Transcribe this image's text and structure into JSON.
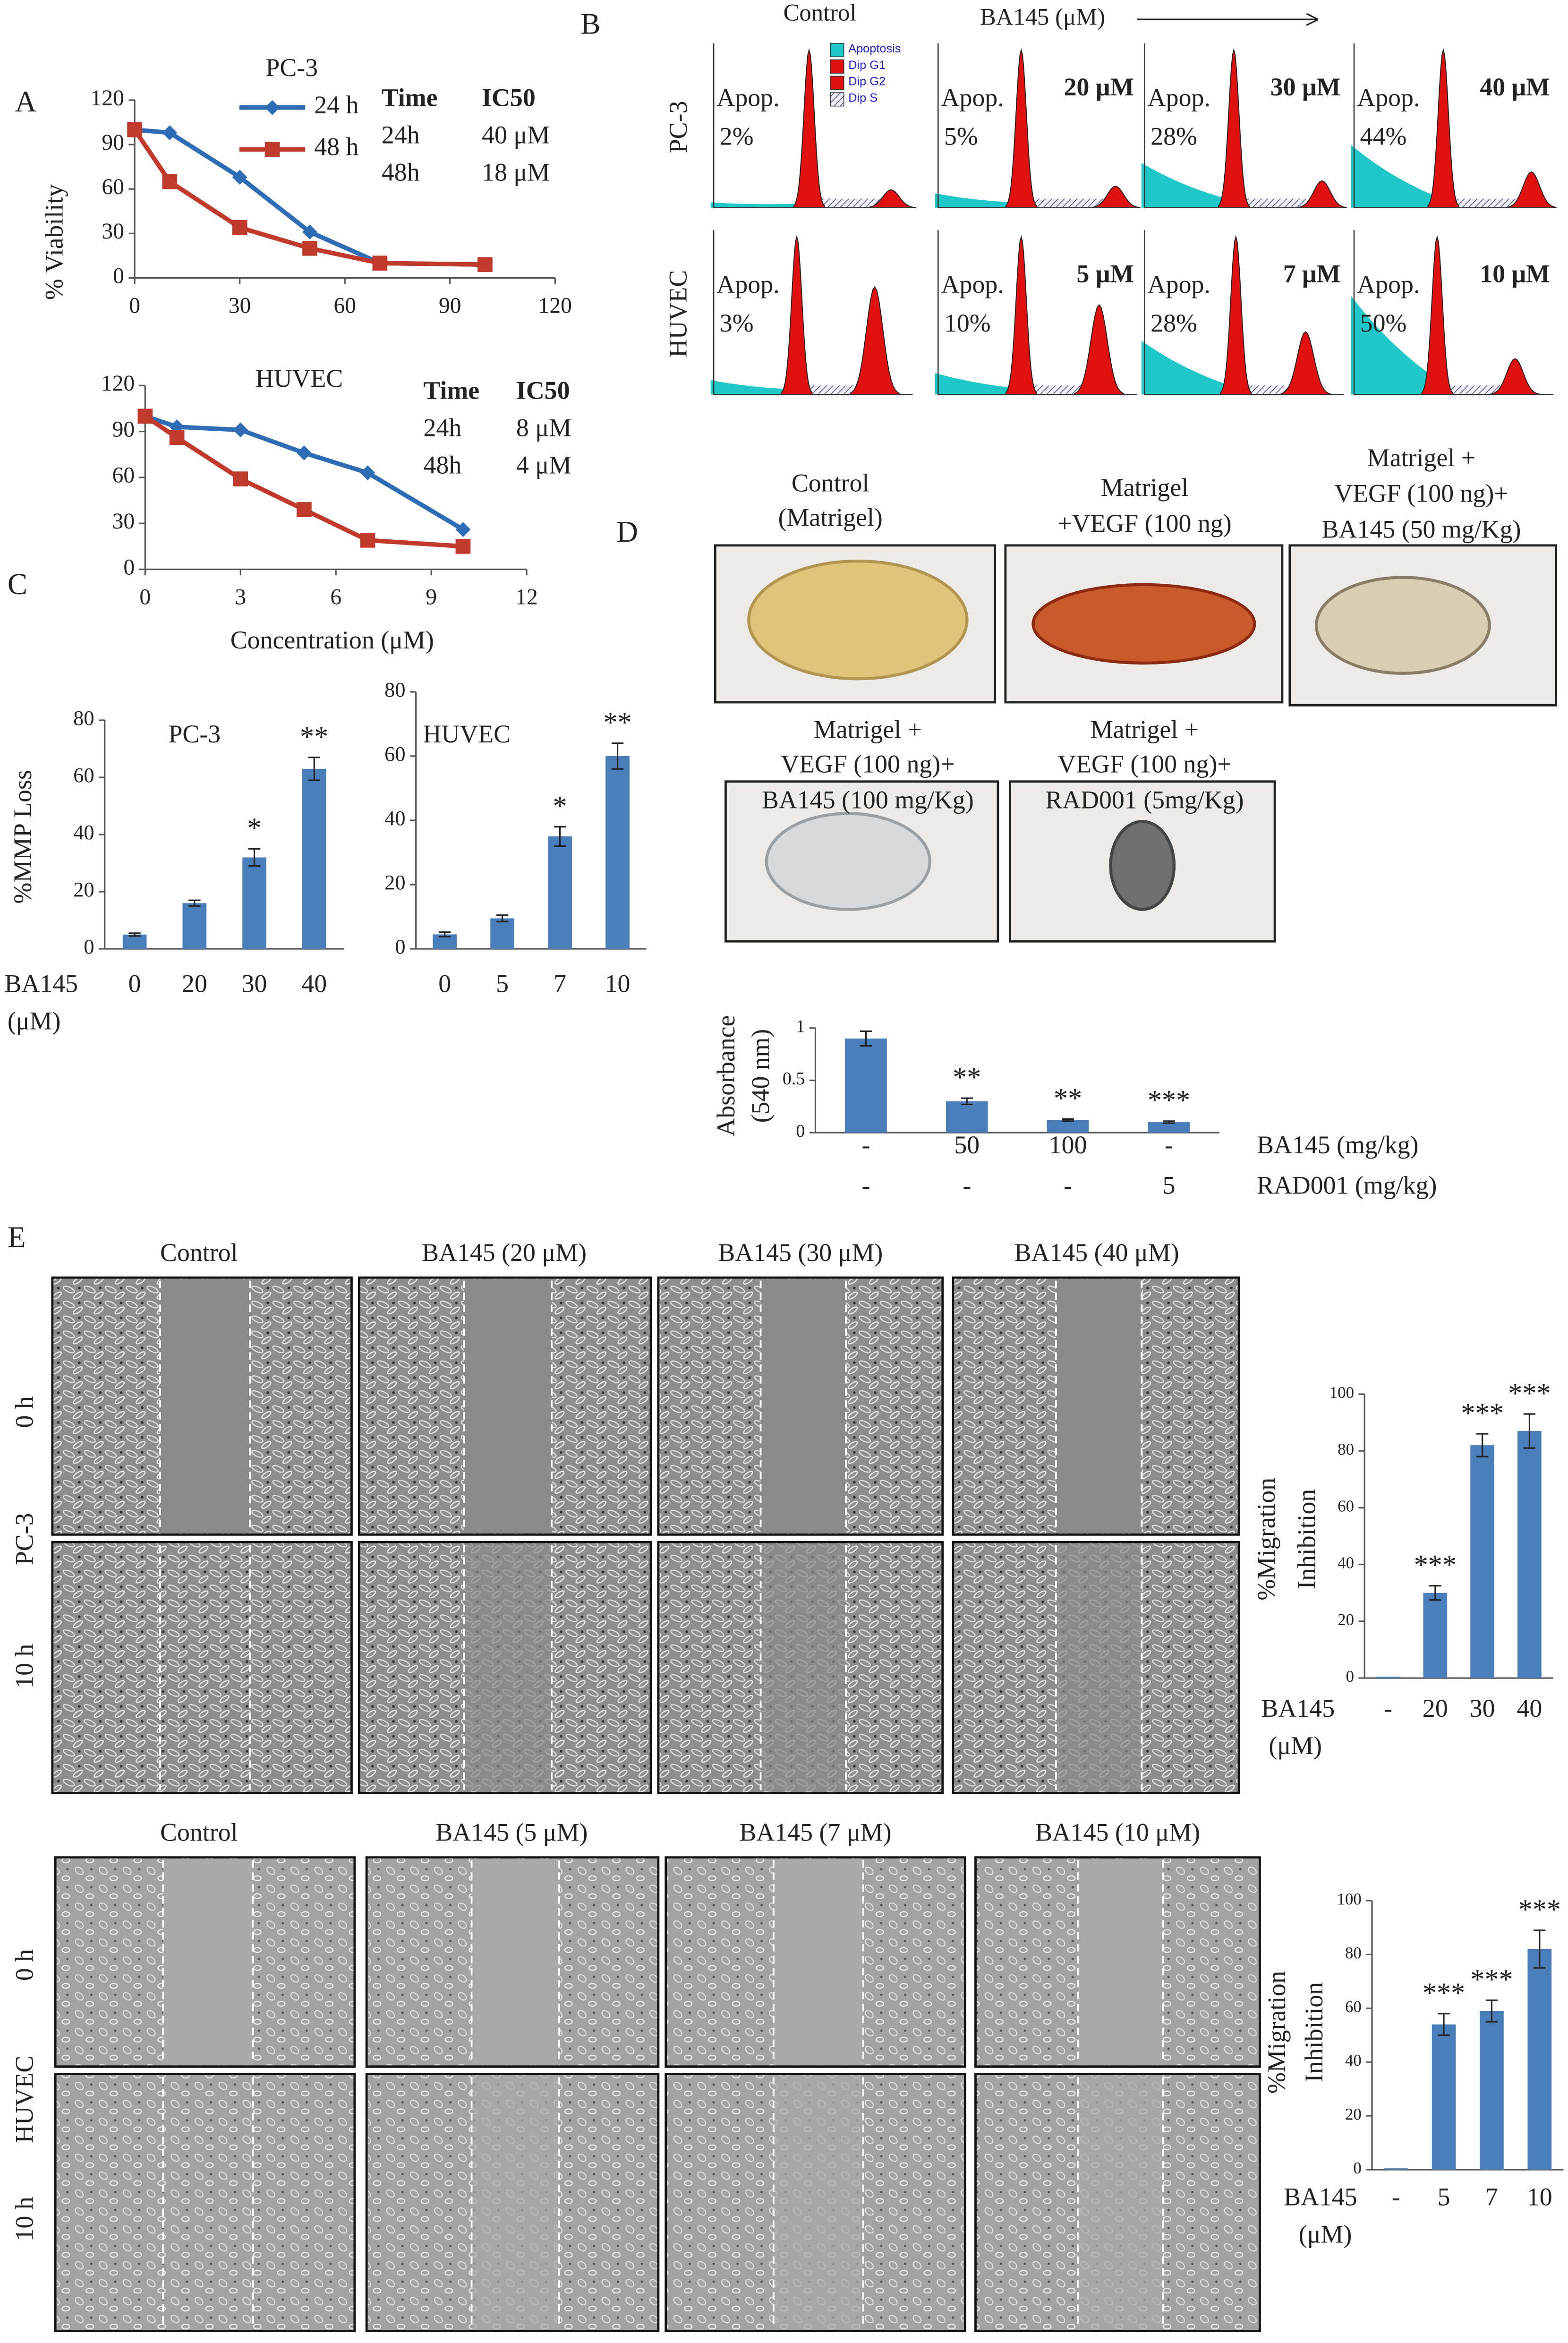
{
  "panel_labels": [
    "A",
    "B",
    "C",
    "D",
    "E"
  ],
  "chart_data": [
    {
      "type": "line",
      "title": "PC-3",
      "ylabel": "% Viability",
      "x": [
        0,
        10,
        30,
        50,
        70,
        100
      ],
      "xlim": [
        0,
        120
      ],
      "xticks": [
        0,
        30,
        60,
        90,
        120
      ],
      "ylim": [
        0,
        120
      ],
      "yticks": [
        0,
        30,
        60,
        90,
        120
      ],
      "legend": true,
      "series": [
        {
          "name": "24 h",
          "color": "#2e6db5",
          "marker": "diamond",
          "values": [
            100,
            98,
            68,
            31,
            10,
            9
          ]
        },
        {
          "name": "48 h",
          "color": "#c0392b",
          "marker": "square",
          "values": [
            100,
            65,
            34,
            20,
            10,
            9
          ]
        }
      ],
      "table": {
        "header": [
          "Time",
          "IC50"
        ],
        "rows": [
          [
            "24h",
            "40 μM"
          ],
          [
            "48h",
            "18 μM"
          ]
        ]
      }
    },
    {
      "type": "line",
      "title": "HUVEC",
      "xlabel": "Concentration (μM)",
      "x": [
        0,
        1,
        3,
        5,
        7,
        10
      ],
      "xlim": [
        0,
        12
      ],
      "xticks": [
        0,
        3,
        6,
        9,
        12
      ],
      "ylim": [
        0,
        120
      ],
      "yticks": [
        0,
        30,
        60,
        90,
        120
      ],
      "legend": false,
      "series": [
        {
          "name": "24 h",
          "color": "#2e6db5",
          "marker": "diamond",
          "values": [
            100,
            93,
            91,
            76,
            63,
            26
          ]
        },
        {
          "name": "48 h",
          "color": "#c0392b",
          "marker": "square",
          "values": [
            100,
            86,
            59,
            39,
            19,
            15
          ]
        }
      ],
      "table": {
        "header": [
          "Time",
          "IC50"
        ],
        "rows": [
          [
            "24h",
            "8 μM"
          ],
          [
            "48h",
            "4 μM"
          ]
        ]
      }
    },
    {
      "type": "bar",
      "title": "PC-3",
      "ylabel": [
        "%MMP Loss"
      ],
      "xlabel": [
        "BA145",
        "(μM)"
      ],
      "color": "#4a7ebb",
      "categories": [
        "0",
        "20",
        "30",
        "40"
      ],
      "values": [
        5,
        16,
        32,
        63
      ],
      "errors": [
        0.5,
        1,
        3,
        4
      ],
      "significance": [
        null,
        null,
        "*",
        "**"
      ],
      "ylim": [
        0,
        80
      ],
      "yticks": [
        0,
        20,
        40,
        60,
        80
      ]
    },
    {
      "type": "bar",
      "title": "HUVEC",
      "color": "#4a7ebb",
      "categories": [
        "0",
        "5",
        "7",
        "10"
      ],
      "values": [
        4.5,
        9.5,
        35,
        60
      ],
      "errors": [
        0.7,
        1,
        3,
        4
      ],
      "significance": [
        null,
        null,
        "*",
        "**"
      ],
      "ylim": [
        0,
        80
      ],
      "yticks": [
        0,
        20,
        40,
        60,
        80
      ]
    },
    {
      "type": "bar",
      "ylabel": [
        "Absorbance",
        "(540 nm)"
      ],
      "color": "#4a7ebb",
      "categories": [
        "-",
        "50",
        "100",
        "-"
      ],
      "categories2": [
        "-",
        "-",
        "-",
        "5"
      ],
      "row_labels": [
        "BA145 (mg/kg)",
        "RAD001 (mg/kg)"
      ],
      "values": [
        0.9,
        0.3,
        0.12,
        0.1
      ],
      "errors": [
        0.07,
        0.03,
        0.01,
        0.01
      ],
      "significance": [
        null,
        "**",
        "**",
        "***"
      ],
      "ylim": [
        0,
        1
      ],
      "yticks": [
        0,
        0.5,
        1
      ]
    },
    {
      "type": "bar",
      "ylabel": [
        "%Migration",
        "Inhibition"
      ],
      "xlabel": [
        "BA145",
        "(μM)"
      ],
      "color": "#4a7ebb",
      "categories": [
        "-",
        "20",
        "30",
        "40"
      ],
      "values": [
        0.5,
        30,
        82,
        87
      ],
      "errors": [
        0,
        2.5,
        4,
        6
      ],
      "significance": [
        null,
        "***",
        "***",
        "***"
      ],
      "ylim": [
        0,
        100
      ],
      "yticks": [
        0,
        20,
        40,
        60,
        80,
        100
      ]
    },
    {
      "type": "bar",
      "ylabel": [
        "%Migration",
        "Inhibition"
      ],
      "xlabel": [
        "BA145",
        "(μM)"
      ],
      "color": "#4a7ebb",
      "categories": [
        "-",
        "5",
        "7",
        "10"
      ],
      "values": [
        0.5,
        54,
        59,
        82
      ],
      "errors": [
        0,
        4,
        4,
        7
      ],
      "significance": [
        null,
        "***",
        "***",
        "***"
      ],
      "ylim": [
        0,
        100
      ],
      "yticks": [
        0,
        20,
        40,
        60,
        80,
        100
      ]
    }
  ],
  "flow": {
    "header_control": "Control",
    "header_treatment": "BA145 (μM)",
    "legend": [
      "Apoptosis",
      "Dip G1",
      "Dip G2",
      "Dip S"
    ],
    "rows": [
      {
        "name": "PC-3",
        "panels": [
          {
            "apop": "Apop.",
            "percent": "2%"
          },
          {
            "apop": "Apop.",
            "percent": "5%",
            "dose": "20 μM"
          },
          {
            "apop": "Apop.",
            "percent": "28%",
            "dose": "30 μM"
          },
          {
            "apop": "Apop.",
            "percent": "44%",
            "dose": "40 μM"
          }
        ]
      },
      {
        "name": "HUVEC",
        "panels": [
          {
            "apop": "Apop.",
            "percent": "3%"
          },
          {
            "apop": "Apop.",
            "percent": "10%",
            "dose": "5 μM"
          },
          {
            "apop": "Apop.",
            "percent": "28%",
            "dose": "7 μM"
          },
          {
            "apop": "Apop.",
            "percent": "50%",
            "dose": "10 μM"
          }
        ]
      }
    ]
  },
  "matrigel": {
    "panels": [
      {
        "caption": [
          "Control",
          "(Matrigel)"
        ]
      },
      {
        "caption": [
          "Matrigel",
          "+VEGF (100 ng)"
        ]
      },
      {
        "caption": [
          "Matrigel +",
          "VEGF (100 ng)+",
          "BA145 (50 mg/Kg)"
        ]
      },
      {
        "caption": [
          "Matrigel +",
          "VEGF (100 ng)+",
          "BA145 (100 mg/Kg)"
        ]
      },
      {
        "caption": [
          "Matrigel +",
          "VEGF (100 ng)+",
          "RAD001 (5mg/Kg)"
        ]
      }
    ]
  },
  "migration": [
    {
      "cell": "PC-3",
      "times": [
        "0 h",
        "10 h"
      ],
      "headers": [
        "Control",
        "BA145 (20 μM)",
        "BA145 (30 μM)",
        "BA145 (40 μM)"
      ]
    },
    {
      "cell": "HUVEC",
      "times": [
        "0 h",
        "10 h"
      ],
      "headers": [
        "Control",
        "BA145 (5 μM)",
        "BA145 (7 μM)",
        "BA145 (10 μM)"
      ]
    }
  ]
}
